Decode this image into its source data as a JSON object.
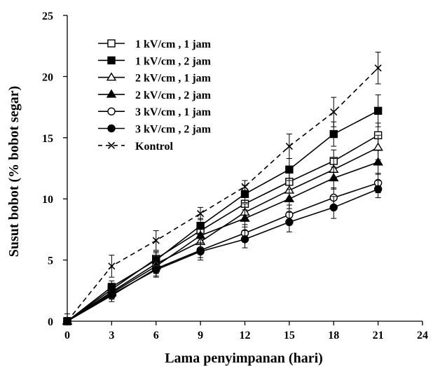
{
  "chart_data": {
    "type": "line",
    "title": "",
    "xlabel": "Lama penyimpanan (hari)",
    "ylabel": "Susut bobot (% bobot segar)",
    "xlim": [
      0,
      24
    ],
    "ylim": [
      0,
      25
    ],
    "xticks": [
      0,
      3,
      6,
      9,
      12,
      15,
      18,
      21,
      24
    ],
    "yticks": [
      0,
      5,
      10,
      15,
      20,
      25
    ],
    "grid": false,
    "legend_position": "top-left",
    "x": [
      0,
      3,
      6,
      9,
      12,
      15,
      18,
      21
    ],
    "series": [
      {
        "name": "1 kV/cm , 1 jam",
        "marker": "square-open",
        "line": "solid",
        "values": [
          0,
          2.6,
          5.1,
          7.4,
          9.6,
          11.4,
          13.1,
          15.2
        ],
        "errors": [
          0.3,
          0.5,
          0.6,
          0.6,
          0.7,
          0.8,
          0.9,
          1.0
        ]
      },
      {
        "name": "1 kV/cm , 2 jam",
        "marker": "square-filled",
        "line": "solid",
        "values": [
          0,
          2.8,
          5.0,
          7.8,
          10.4,
          12.4,
          15.3,
          17.2
        ],
        "errors": [
          0.3,
          0.5,
          0.6,
          0.6,
          0.7,
          0.9,
          1.0,
          1.3
        ]
      },
      {
        "name": "2 kV/cm , 1 jam",
        "marker": "triangle-open",
        "line": "solid",
        "values": [
          0,
          2.4,
          4.7,
          6.5,
          8.9,
          10.7,
          12.4,
          14.2
        ],
        "errors": [
          0.3,
          0.5,
          0.6,
          0.6,
          0.7,
          0.8,
          0.9,
          1.0
        ]
      },
      {
        "name": "2 kV/cm , 2 jam",
        "marker": "triangle-filled",
        "line": "solid",
        "values": [
          0,
          2.3,
          4.5,
          7.0,
          8.4,
          10.0,
          11.7,
          13.0
        ],
        "errors": [
          0.3,
          0.5,
          0.6,
          0.6,
          0.7,
          0.8,
          0.9,
          1.0
        ]
      },
      {
        "name": "3 kV/cm , 1 jam",
        "marker": "circle-open",
        "line": "solid",
        "values": [
          0,
          2.1,
          4.3,
          5.8,
          7.2,
          8.7,
          10.1,
          11.3
        ],
        "errors": [
          0.3,
          0.5,
          0.6,
          0.6,
          0.7,
          0.8,
          0.8,
          0.8
        ]
      },
      {
        "name": "3 kV/cm , 2 jam",
        "marker": "circle-filled",
        "line": "solid",
        "values": [
          0,
          2.2,
          4.2,
          5.7,
          6.7,
          8.1,
          9.3,
          10.8
        ],
        "errors": [
          0.3,
          0.6,
          0.6,
          0.7,
          0.7,
          0.8,
          0.9,
          0.7
        ]
      },
      {
        "name": "Kontrol",
        "marker": "x",
        "line": "dashed",
        "values": [
          0,
          4.5,
          6.6,
          8.8,
          11.0,
          14.3,
          17.1,
          20.7
        ],
        "errors": [
          0.6,
          0.9,
          0.8,
          0.5,
          0.5,
          1.0,
          1.2,
          1.3
        ]
      }
    ]
  }
}
